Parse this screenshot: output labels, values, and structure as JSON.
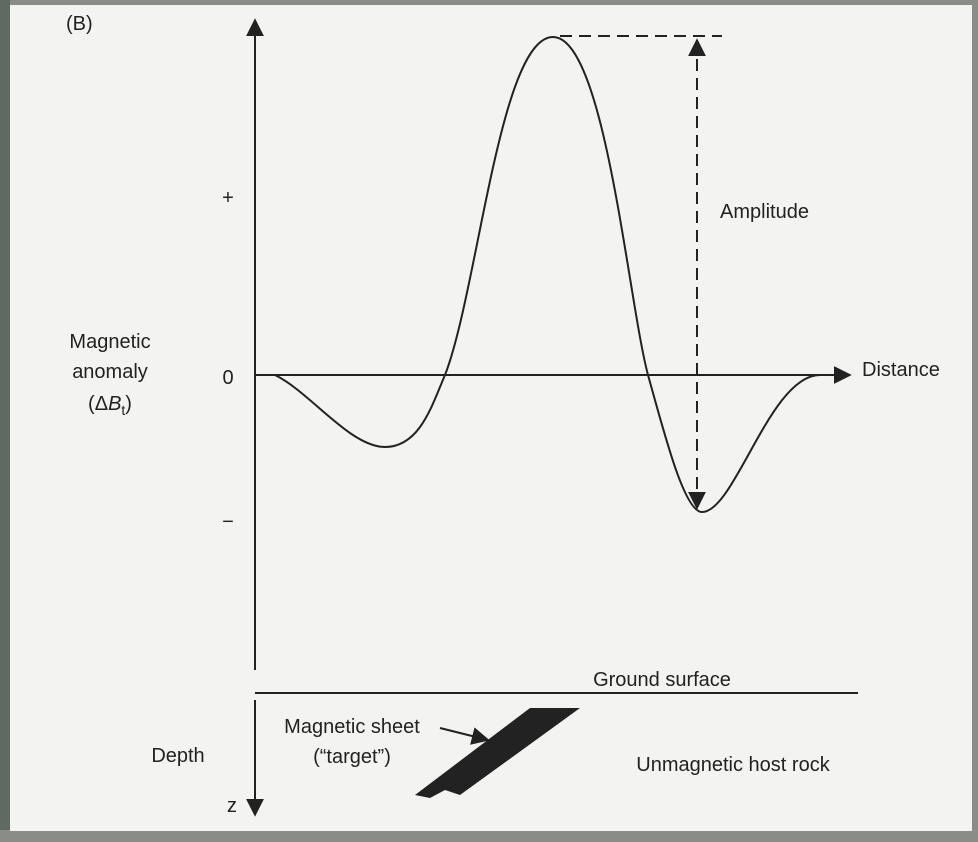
{
  "panel_label": "(B)",
  "y_axis": {
    "plus": "+",
    "zero": "0",
    "minus": "−",
    "label": {
      "line1": "Magnetic",
      "line2": "anomaly",
      "open": "(Δ",
      "symbol": "B",
      "sub": "t",
      "close": ")"
    }
  },
  "x_axis": {
    "label": "Distance"
  },
  "amplitude": "Amplitude",
  "ground_surface": "Ground surface",
  "sheet": {
    "line1": "Magnetic sheet",
    "line2": "(“target”)"
  },
  "depth": "Depth",
  "host_rock": "Unmagnetic host rock",
  "z": "z"
}
